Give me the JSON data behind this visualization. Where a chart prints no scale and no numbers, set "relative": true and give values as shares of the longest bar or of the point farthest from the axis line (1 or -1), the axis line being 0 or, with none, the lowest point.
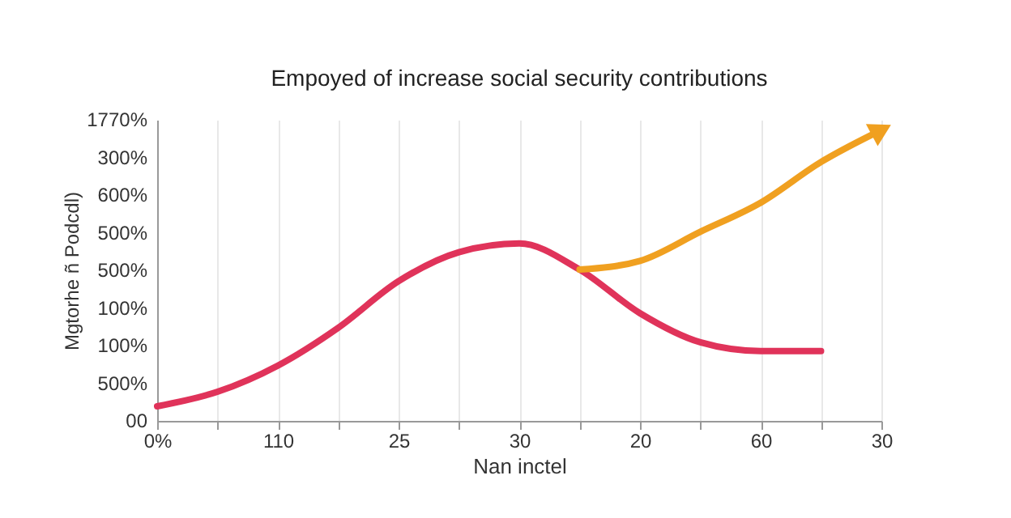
{
  "chart_data": {
    "type": "line",
    "title": "Empoyed of increase social security contributions",
    "xlabel": "Nan inctel",
    "ylabel": "Mgtorhe ñ Podcdl)",
    "categories": [
      "0%",
      null,
      "110",
      null,
      "25",
      null,
      "30",
      null,
      "20",
      null,
      "60",
      null,
      "30"
    ],
    "relative": true,
    "grid": true,
    "line_style": "solid",
    "annotations": [
      "1770%",
      "300%",
      "600%",
      "500%",
      "500%",
      "100%",
      "100%",
      "500%",
      "00"
    ],
    "series": [
      {
        "color": "#e0335a",
        "values": [
          0.05,
          0.1,
          0.19,
          0.32,
          0.48,
          0.58,
          0.61,
          0.52,
          0.37,
          0.27,
          0.24,
          0.24,
          null
        ]
      },
      {
        "color": "#f0a020",
        "values": [
          null,
          null,
          null,
          null,
          null,
          null,
          null,
          0.52,
          0.55,
          0.65,
          0.75,
          0.89,
          1
        ]
      }
    ]
  }
}
